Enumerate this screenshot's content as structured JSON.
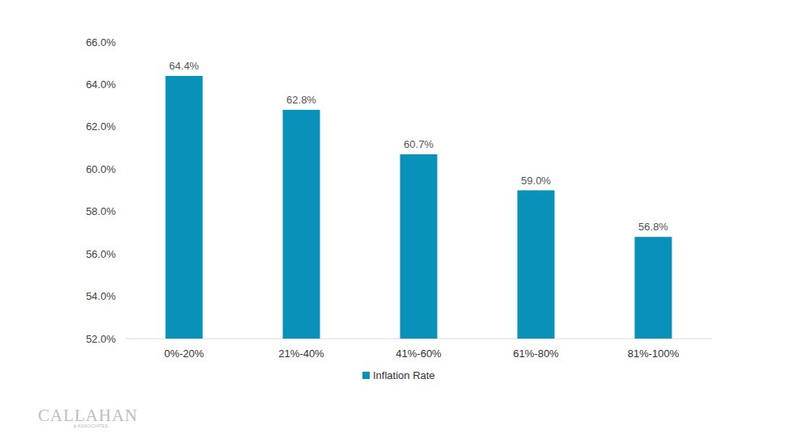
{
  "chart_data": {
    "type": "bar",
    "categories": [
      "0%-20%",
      "21%-40%",
      "41%-60%",
      "61%-80%",
      "81%-100%"
    ],
    "series": [
      {
        "name": "Inflation Rate",
        "color": "#0892b9",
        "values": [
          64.4,
          62.8,
          60.7,
          59.0,
          56.8
        ],
        "value_labels": [
          "64.4%",
          "62.8%",
          "60.7%",
          "59.0%",
          "56.8%"
        ]
      }
    ],
    "ylim": [
      52,
      66
    ],
    "yticks": [
      {
        "value": 52,
        "label": "52.0%"
      },
      {
        "value": 54,
        "label": "54.0%"
      },
      {
        "value": 56,
        "label": "56.0%"
      },
      {
        "value": 58,
        "label": "58.0%"
      },
      {
        "value": 60,
        "label": "60.0%"
      },
      {
        "value": 62,
        "label": "62.0%"
      },
      {
        "value": 64,
        "label": "64.0%"
      },
      {
        "value": 66,
        "label": "66.0%"
      }
    ],
    "grid": false,
    "legend": "bottom",
    "data_labels": true,
    "annotations": [
      "CALLAHAN",
      "& ASSOCIATES"
    ]
  }
}
